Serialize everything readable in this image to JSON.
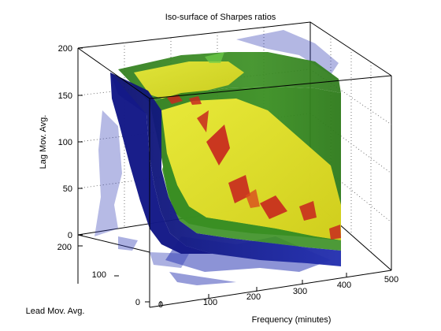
{
  "chart_data": {
    "type": "isosurface-3d",
    "title": "Iso-surface of Sharpes ratios",
    "xlabel": "Frequency (minutes)",
    "ylabel": "Lead Mov. Avg.",
    "zlabel": "Lag Mov. Avg.",
    "x_ticks": [
      0,
      100,
      200,
      300,
      400,
      500
    ],
    "y_ticks": [
      0,
      100,
      200
    ],
    "z_ticks": [
      0,
      50,
      100,
      150,
      200
    ],
    "xlim": [
      0,
      500
    ],
    "ylim": [
      0,
      200
    ],
    "zlim": [
      0,
      200
    ],
    "grid": true,
    "box": true,
    "iso_levels": [
      {
        "level": "low",
        "color": "#1a1f9c"
      },
      {
        "level": "mid-low",
        "color": "#2e8b1e"
      },
      {
        "level": "mid-high",
        "color": "#e6e21a"
      },
      {
        "level": "high",
        "color": "#c8281e"
      }
    ]
  }
}
